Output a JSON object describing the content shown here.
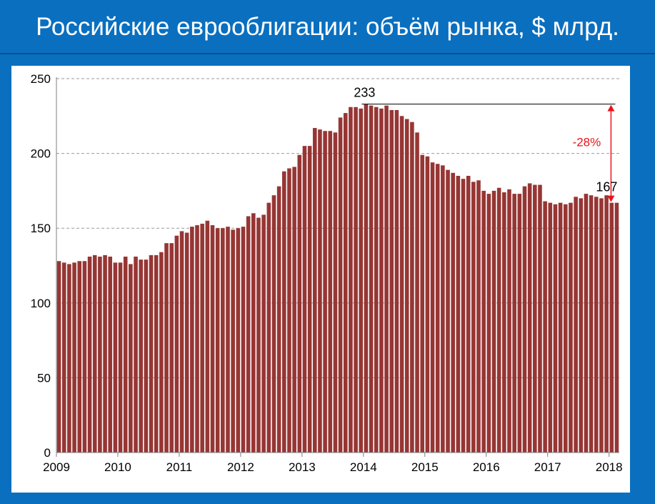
{
  "header": {
    "title": "Российские еврооблигации: объём рынка, $ млрд."
  },
  "colors": {
    "background": "#0a6fbf",
    "bar": "#963634",
    "bar_edge": "#ffffff",
    "annotation": "#e8141b"
  },
  "chart_data": {
    "type": "bar",
    "title": "Российские еврооблигации: объём рынка, $ млрд.",
    "xlabel": "",
    "ylabel": "",
    "ylim": [
      0,
      250
    ],
    "yticks": [
      "0",
      "50",
      "100",
      "150",
      "200",
      "250"
    ],
    "xticks": [
      "2009",
      "2010",
      "2011",
      "2012",
      "2013",
      "2014",
      "2015",
      "2016",
      "2017",
      "2018"
    ],
    "grid": "horizontal dashed",
    "start": "2009-01",
    "frequency": "monthly",
    "values": [
      128,
      127,
      126,
      127,
      128,
      128,
      131,
      132,
      131,
      132,
      131,
      127,
      127,
      131,
      126,
      131,
      129,
      129,
      132,
      132,
      134,
      140,
      140,
      145,
      148,
      147,
      151,
      152,
      153,
      155,
      152,
      150,
      150,
      151,
      149,
      150,
      151,
      158,
      160,
      157,
      159,
      167,
      172,
      178,
      188,
      190,
      191,
      199,
      205,
      205,
      217,
      216,
      215,
      215,
      214,
      224,
      227,
      231,
      231,
      230,
      233,
      232,
      231,
      230,
      232,
      229,
      229,
      225,
      223,
      221,
      214,
      199,
      198,
      194,
      193,
      192,
      189,
      187,
      185,
      183,
      185,
      181,
      182,
      175,
      173,
      175,
      177,
      174,
      176,
      173,
      173,
      178,
      180,
      179,
      179,
      168,
      167,
      166,
      167,
      166,
      167,
      171,
      170,
      173,
      172,
      171,
      170,
      172,
      167,
      167
    ],
    "annotations": {
      "peak_label": "233",
      "last_label": "167",
      "change_label": "-28%"
    }
  }
}
